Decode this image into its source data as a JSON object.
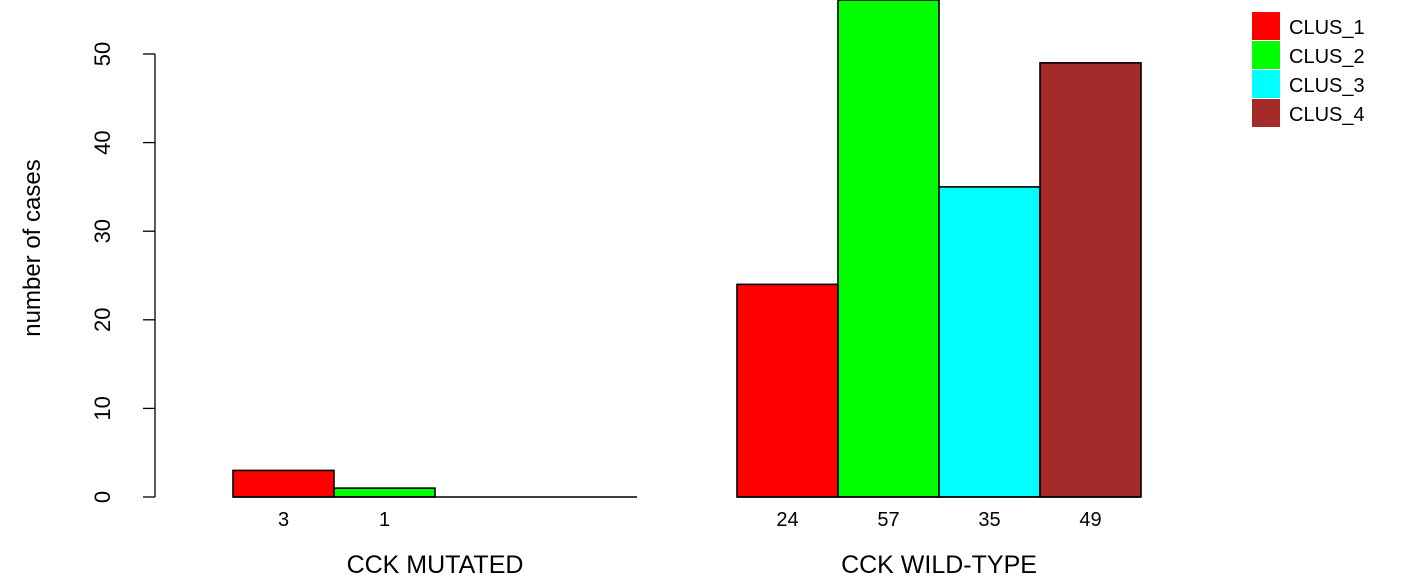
{
  "chart_data": {
    "type": "bar",
    "ylabel": "number of cases",
    "ylim": [
      0,
      57
    ],
    "yticks": [
      0,
      10,
      20,
      30,
      40,
      50
    ],
    "categories": [
      "CCK MUTATED",
      "CCK WILD-TYPE"
    ],
    "series": [
      {
        "name": "CLUS_1",
        "color": "#ff0000",
        "values": [
          3,
          24
        ]
      },
      {
        "name": "CLUS_2",
        "color": "#00ff00",
        "values": [
          1,
          57
        ]
      },
      {
        "name": "CLUS_3",
        "color": "#00ffff",
        "values": [
          0,
          35
        ]
      },
      {
        "name": "CLUS_4",
        "color": "#a52a2a",
        "values": [
          0,
          49
        ]
      }
    ],
    "data_labels": [
      [
        "3",
        "1",
        "",
        ""
      ],
      [
        "24",
        "57",
        "35",
        "49"
      ]
    ],
    "legend_position": "top-right",
    "grid": false
  }
}
